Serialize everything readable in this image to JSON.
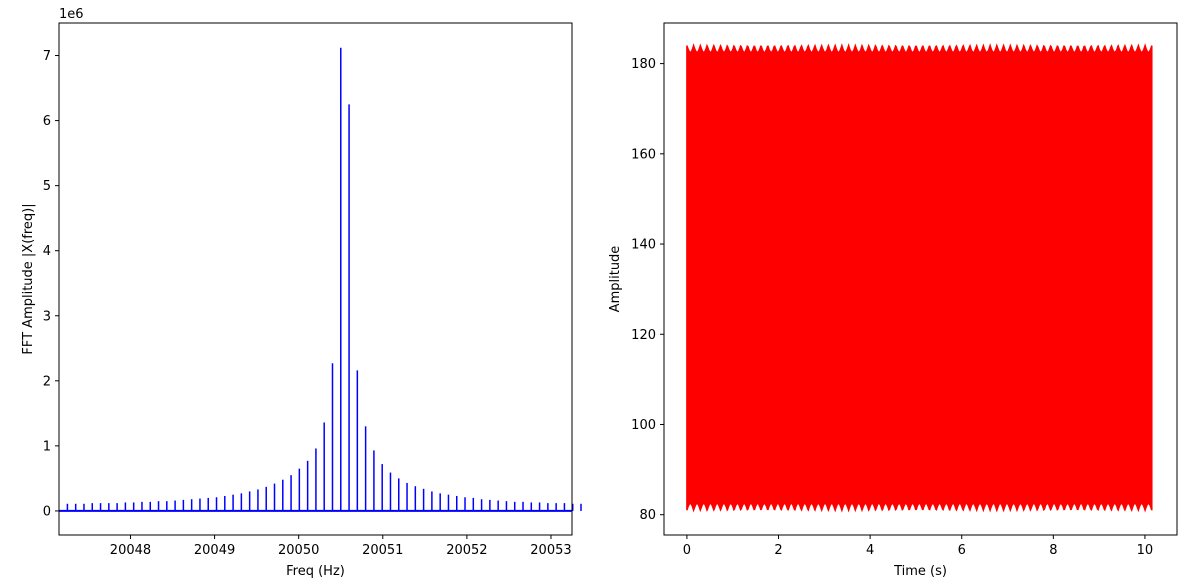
{
  "chart_data": [
    {
      "type": "stem",
      "title": "",
      "xlabel": "Freq (Hz)",
      "ylabel": "FFT Amplitude |X(freq)|",
      "y_offset_label": "1e6",
      "xlim": [
        20047.15,
        20053.25
      ],
      "ylim": [
        -0.37,
        7.5
      ],
      "xticks": [
        20048,
        20049,
        20050,
        20051,
        20052,
        20053
      ],
      "xtick_labels": [
        "20048",
        "20049",
        "20050",
        "20051",
        "20052",
        "20053"
      ],
      "yticks": [
        0,
        1,
        2,
        3,
        4,
        5,
        6,
        7
      ],
      "ytick_labels": [
        "0",
        "1",
        "2",
        "3",
        "4",
        "5",
        "6",
        "7"
      ],
      "grid": false,
      "series": [
        {
          "color": "#0000ff",
          "x_start": 20047.25,
          "x_step": 0.0985,
          "values": [
            0.11,
            0.11,
            0.11,
            0.12,
            0.12,
            0.12,
            0.12,
            0.13,
            0.13,
            0.14,
            0.14,
            0.15,
            0.15,
            0.16,
            0.17,
            0.18,
            0.19,
            0.2,
            0.21,
            0.23,
            0.25,
            0.27,
            0.3,
            0.33,
            0.37,
            0.42,
            0.48,
            0.55,
            0.65,
            0.77,
            0.96,
            1.36,
            2.27,
            7.12,
            6.25,
            2.16,
            1.3,
            0.93,
            0.72,
            0.59,
            0.5,
            0.43,
            0.38,
            0.34,
            0.3,
            0.27,
            0.25,
            0.23,
            0.21,
            0.2,
            0.18,
            0.17,
            0.16,
            0.15,
            0.14,
            0.14,
            0.13,
            0.13,
            0.12,
            0.12,
            0.12,
            0.11,
            0.11
          ]
        }
      ]
    },
    {
      "type": "line",
      "title": "",
      "xlabel": "Time (s)",
      "ylabel": "Amplitude",
      "xlim": [
        -0.5,
        10.7
      ],
      "ylim": [
        75.5,
        189
      ],
      "xticks": [
        0,
        2,
        4,
        6,
        8,
        10
      ],
      "xtick_labels": [
        "0",
        "2",
        "4",
        "6",
        "8",
        "10"
      ],
      "yticks": [
        80,
        100,
        120,
        140,
        160,
        180
      ],
      "ytick_labels": [
        "80",
        "100",
        "120",
        "140",
        "160",
        "180"
      ],
      "grid": false,
      "series": [
        {
          "color": "#ff0000",
          "x_range": [
            0,
            10.15
          ],
          "min_envelope": 81,
          "max_envelope": 184,
          "envelope_ripple": 1.5,
          "envelope_cycles": 69
        }
      ]
    }
  ]
}
